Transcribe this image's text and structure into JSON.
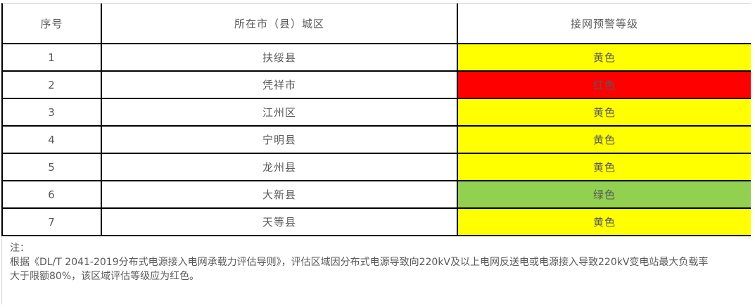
{
  "table": {
    "headers": [
      "序号",
      "所在市（县）城区",
      "接网预警等级"
    ],
    "rows": [
      {
        "no": "1",
        "area": "扶绥县",
        "level": "黄色",
        "level_color": "#FFFF00"
      },
      {
        "no": "2",
        "area": "凭祥市",
        "level": "红色",
        "level_color": "#FF0000"
      },
      {
        "no": "3",
        "area": "江州区",
        "level": "黄色",
        "level_color": "#FFFF00"
      },
      {
        "no": "4",
        "area": "宁明县",
        "level": "黄色",
        "level_color": "#FFFF00"
      },
      {
        "no": "5",
        "area": "龙州县",
        "level": "黄色",
        "level_color": "#FFFF00"
      },
      {
        "no": "6",
        "area": "大新县",
        "level": "绿色",
        "level_color": "#92D050"
      },
      {
        "no": "7",
        "area": "天等县",
        "level": "黄色",
        "level_color": "#FFFF00"
      }
    ]
  },
  "note": {
    "lines": [
      "注：",
      "根据《DL/T 2041-2019分布式电源接入电网承载力评估导则》，评估区域因分布式电源导致向220kV及以上电网反送电或电源接入导致220kV变电站最大负载率",
      "大于限额80%，该区域评估等级应为红色。"
    ]
  },
  "colors": {
    "yellow_warning": "#FFFF00",
    "red_warning": "#FF0000",
    "green_warning": "#92D050",
    "text": "#595959",
    "border": "#000000"
  }
}
